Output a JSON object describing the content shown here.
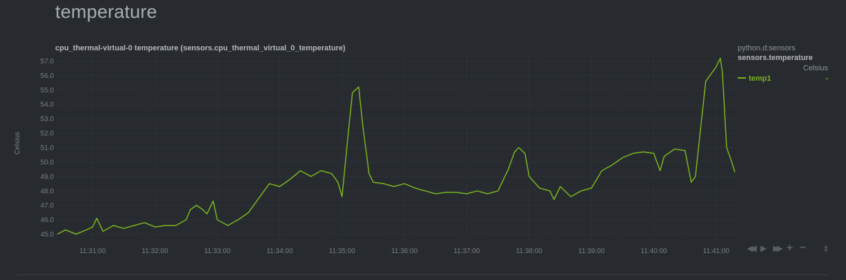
{
  "section": {
    "title": "temperature"
  },
  "chart_data": {
    "type": "line",
    "title": "cpu_thermal-virtual-0 temperature (sensors.cpu_thermal_virtual_0_temperature)",
    "ylabel": "Celsius",
    "xlabel": "",
    "ylim": [
      44.5,
      57.5
    ],
    "yticks": [
      "45.0",
      "46.0",
      "47.0",
      "48.0",
      "49.0",
      "50.0",
      "51.0",
      "52.0",
      "53.0",
      "54.0",
      "55.0",
      "56.0",
      "57.0"
    ],
    "xlim": [
      "11:30:26",
      "11:41:18"
    ],
    "xticks": [
      "11:31:00",
      "11:32:00",
      "11:33:00",
      "11:34:00",
      "11:35:00",
      "11:36:00",
      "11:37:00",
      "11:38:00",
      "11:39:00",
      "11:40:00",
      "11:41:00"
    ],
    "grid": true,
    "legend_position": "right",
    "series": [
      {
        "name": "temp1",
        "color": "#7ab51d",
        "points": [
          [
            "11:30:26",
            45.0
          ],
          [
            "11:30:34",
            45.3
          ],
          [
            "11:30:44",
            45.0
          ],
          [
            "11:30:54",
            45.3
          ],
          [
            "11:31:00",
            45.5
          ],
          [
            "11:31:04",
            46.1
          ],
          [
            "11:31:10",
            45.2
          ],
          [
            "11:31:20",
            45.6
          ],
          [
            "11:31:30",
            45.4
          ],
          [
            "11:31:40",
            45.6
          ],
          [
            "11:31:50",
            45.8
          ],
          [
            "11:32:00",
            45.5
          ],
          [
            "11:32:10",
            45.6
          ],
          [
            "11:32:20",
            45.6
          ],
          [
            "11:32:30",
            46.0
          ],
          [
            "11:32:34",
            46.7
          ],
          [
            "11:32:40",
            47.0
          ],
          [
            "11:32:46",
            46.7
          ],
          [
            "11:32:50",
            46.4
          ],
          [
            "11:32:56",
            47.3
          ],
          [
            "11:33:00",
            46.0
          ],
          [
            "11:33:10",
            45.6
          ],
          [
            "11:33:20",
            46.0
          ],
          [
            "11:33:30",
            46.5
          ],
          [
            "11:33:40",
            47.5
          ],
          [
            "11:33:50",
            48.5
          ],
          [
            "11:34:00",
            48.3
          ],
          [
            "11:34:10",
            48.8
          ],
          [
            "11:34:20",
            49.4
          ],
          [
            "11:34:30",
            49.0
          ],
          [
            "11:34:40",
            49.4
          ],
          [
            "11:34:50",
            49.2
          ],
          [
            "11:34:56",
            48.6
          ],
          [
            "11:35:00",
            47.6
          ],
          [
            "11:35:06",
            52.0
          ],
          [
            "11:35:10",
            54.8
          ],
          [
            "11:35:16",
            55.2
          ],
          [
            "11:35:20",
            52.5
          ],
          [
            "11:35:26",
            49.2
          ],
          [
            "11:35:30",
            48.6
          ],
          [
            "11:35:40",
            48.5
          ],
          [
            "11:35:50",
            48.3
          ],
          [
            "11:36:00",
            48.5
          ],
          [
            "11:36:10",
            48.2
          ],
          [
            "11:36:20",
            48.0
          ],
          [
            "11:36:30",
            47.8
          ],
          [
            "11:36:40",
            47.9
          ],
          [
            "11:36:50",
            47.9
          ],
          [
            "11:37:00",
            47.8
          ],
          [
            "11:37:10",
            48.0
          ],
          [
            "11:37:20",
            47.8
          ],
          [
            "11:37:30",
            48.0
          ],
          [
            "11:37:40",
            49.5
          ],
          [
            "11:37:46",
            50.7
          ],
          [
            "11:37:50",
            51.0
          ],
          [
            "11:37:56",
            50.6
          ],
          [
            "11:38:00",
            49.0
          ],
          [
            "11:38:10",
            48.2
          ],
          [
            "11:38:20",
            48.0
          ],
          [
            "11:38:24",
            47.4
          ],
          [
            "11:38:30",
            48.3
          ],
          [
            "11:38:40",
            47.6
          ],
          [
            "11:38:50",
            48.0
          ],
          [
            "11:39:00",
            48.2
          ],
          [
            "11:39:10",
            49.4
          ],
          [
            "11:39:20",
            49.8
          ],
          [
            "11:39:30",
            50.3
          ],
          [
            "11:39:40",
            50.6
          ],
          [
            "11:39:50",
            50.7
          ],
          [
            "11:40:00",
            50.6
          ],
          [
            "11:40:06",
            49.4
          ],
          [
            "11:40:10",
            50.4
          ],
          [
            "11:40:20",
            50.9
          ],
          [
            "11:40:30",
            50.8
          ],
          [
            "11:40:36",
            48.6
          ],
          [
            "11:40:40",
            49.0
          ],
          [
            "11:40:46",
            53.0
          ],
          [
            "11:40:50",
            55.6
          ],
          [
            "11:41:00",
            56.6
          ],
          [
            "11:41:04",
            57.2
          ],
          [
            "11:41:06",
            56.2
          ],
          [
            "11:41:10",
            51.0
          ],
          [
            "11:41:14",
            50.2
          ],
          [
            "11:41:18",
            49.3
          ]
        ]
      }
    ]
  },
  "legend": {
    "family": "python.d:sensors",
    "context": "sensors.temperature",
    "units": "Celsius",
    "dimension": "temp1",
    "value": "-"
  },
  "toolbox": {
    "left": "◀◀",
    "play": "▶",
    "right": "▶▶",
    "zoom_in": "+",
    "zoom_out": "−",
    "resize": "▲▼"
  }
}
